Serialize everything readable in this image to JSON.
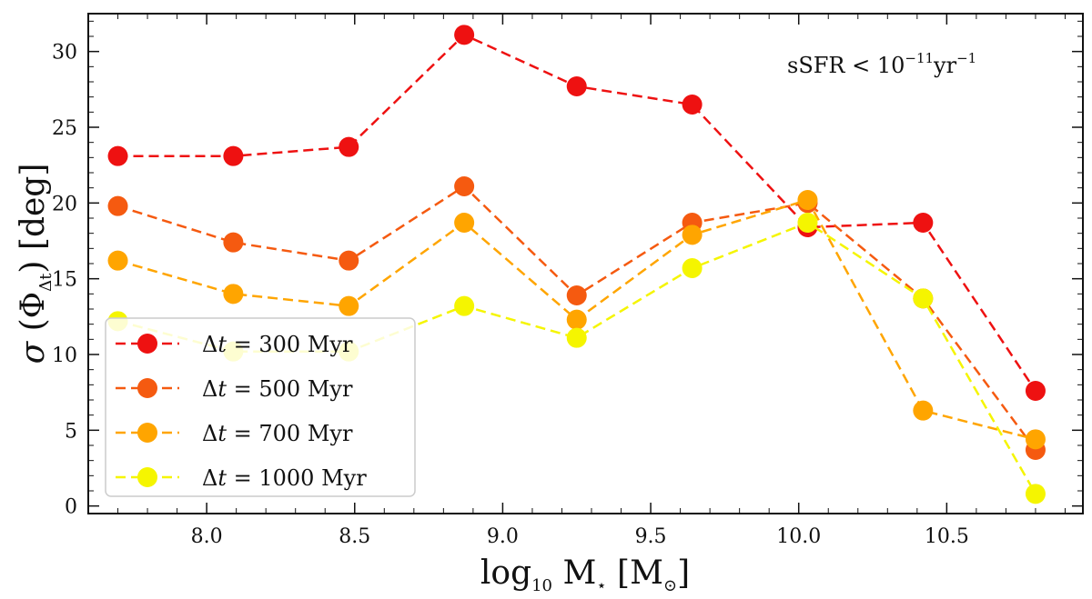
{
  "chart_data": {
    "type": "line",
    "title": "",
    "annotation": {
      "base": "sSFR < 10",
      "exp": "−11",
      "unit": "yr",
      "unit_exp": "−1"
    },
    "xlabel": {
      "base": "log",
      "sub": "10",
      "rest": " M",
      "star": "⋆",
      "bracket": " [M",
      "sun": "⊙",
      "close": "]"
    },
    "ylabel": {
      "sigma": "σ",
      "open": " (Φ",
      "sub": "Δt",
      "close": ") [deg]"
    },
    "xlim": [
      7.6,
      10.96
    ],
    "ylim": [
      -0.5,
      32.5
    ],
    "xticks": [
      8.0,
      8.5,
      9.0,
      9.5,
      10.0,
      10.5
    ],
    "xtick_labels": [
      "8.0",
      "8.5",
      "9.0",
      "9.5",
      "10.0",
      "10.5"
    ],
    "yticks": [
      0,
      5,
      10,
      15,
      20,
      25,
      30
    ],
    "ytick_labels": [
      "0",
      "5",
      "10",
      "15",
      "20",
      "25",
      "30"
    ],
    "x": [
      7.7,
      8.09,
      8.48,
      8.87,
      9.25,
      9.64,
      10.03,
      10.42,
      10.8
    ],
    "series": [
      {
        "name": "Δt = 300 Myr",
        "color": "#ee1111",
        "values": [
          23.1,
          23.1,
          23.7,
          31.1,
          27.7,
          26.5,
          18.4,
          18.7,
          7.6
        ]
      },
      {
        "name": "Δt = 500 Myr",
        "color": "#f55a10",
        "values": [
          19.8,
          17.4,
          16.2,
          21.1,
          13.9,
          18.7,
          20.0,
          13.7,
          3.7
        ]
      },
      {
        "name": "Δt = 700 Myr",
        "color": "#ffa500",
        "values": [
          16.2,
          14.0,
          13.2,
          18.7,
          12.3,
          17.9,
          20.2,
          6.3,
          4.4
        ]
      },
      {
        "name": "Δt = 1000 Myr",
        "color": "#f5f500",
        "values": [
          12.2,
          10.2,
          10.2,
          13.2,
          11.1,
          15.7,
          18.7,
          13.7,
          0.8
        ]
      }
    ],
    "legend": {
      "position": "lower-left",
      "entries": [
        {
          "delta": "Δ",
          "t": "t",
          "eq": " = ",
          "num": "300",
          "unit": " Myr"
        },
        {
          "delta": "Δ",
          "t": "t",
          "eq": " = ",
          "num": "500",
          "unit": " Myr"
        },
        {
          "delta": "Δ",
          "t": "t",
          "eq": " = ",
          "num": "700",
          "unit": " Myr"
        },
        {
          "delta": "Δ",
          "t": "t",
          "eq": " = ",
          "num": "1000",
          "unit": " Myr"
        }
      ]
    }
  }
}
